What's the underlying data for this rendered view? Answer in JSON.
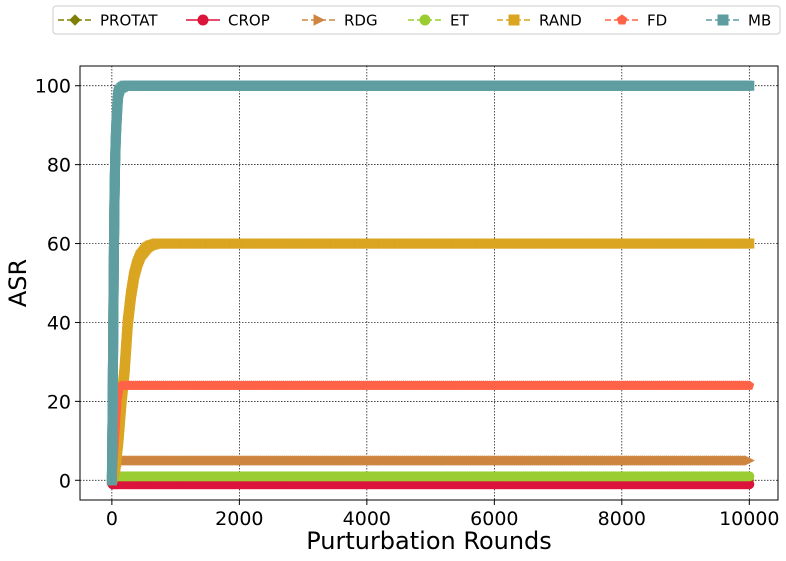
{
  "chart_data": {
    "type": "line",
    "title": "",
    "xlabel": "Purturbation Rounds",
    "ylabel": "ASR",
    "xlim": [
      -500,
      10450
    ],
    "ylim": [
      -5,
      105
    ],
    "xticks": [
      0,
      2000,
      4000,
      6000,
      8000,
      10000
    ],
    "yticks": [
      0,
      20,
      40,
      60,
      80,
      100
    ],
    "xtick_labels": [
      "0",
      "2000",
      "4000",
      "6000",
      "8000",
      "10000"
    ],
    "ytick_labels": [
      "0",
      "20",
      "40",
      "60",
      "80",
      "100"
    ],
    "grid": true,
    "legend_position": "top",
    "series": [
      {
        "name": "PROTAT",
        "color": "#808000",
        "marker": "diamond",
        "dash": "6,3",
        "x": [
          0,
          5,
          10,
          20,
          50,
          100,
          10000
        ],
        "y": [
          0,
          0,
          0,
          0,
          0,
          0,
          0
        ]
      },
      {
        "name": "CROP",
        "color": "#DC143C",
        "marker": "circle",
        "dash": "",
        "x": [
          0,
          10,
          20,
          50,
          100,
          200,
          10000
        ],
        "y": [
          0,
          -1,
          -1,
          -1,
          -1,
          -1,
          -1
        ]
      },
      {
        "name": "RDG",
        "color": "#CD853F",
        "marker": "triangle-right",
        "dash": "6,3",
        "x": [
          0,
          20,
          40,
          60,
          80,
          100,
          150,
          10000
        ],
        "y": [
          0,
          1,
          2,
          3,
          4,
          5,
          5,
          5
        ]
      },
      {
        "name": "ET",
        "color": "#9ACD32",
        "marker": "circle",
        "dash": "6,3",
        "x": [
          0,
          20,
          50,
          100,
          10000
        ],
        "y": [
          0,
          0.5,
          1,
          1,
          1
        ]
      },
      {
        "name": "RAND",
        "color": "#DAA520",
        "marker": "square",
        "dash": "6,3",
        "x": [
          0,
          50,
          100,
          150,
          200,
          250,
          300,
          350,
          400,
          450,
          500,
          550,
          600,
          700,
          10000
        ],
        "y": [
          0,
          3,
          10,
          20,
          28,
          40,
          47,
          52,
          55,
          57,
          58,
          59,
          59.5,
          60,
          60
        ]
      },
      {
        "name": "FD",
        "color": "#FF6347",
        "marker": "pentagon",
        "dash": "6,3",
        "x": [
          0,
          20,
          40,
          60,
          80,
          100,
          120,
          150,
          10000
        ],
        "y": [
          0,
          5,
          10,
          15,
          20,
          22,
          23.5,
          24,
          24
        ]
      },
      {
        "name": "MB",
        "color": "#5F9EA0",
        "marker": "square",
        "dash": "6,3",
        "x": [
          0,
          10,
          20,
          30,
          40,
          50,
          60,
          70,
          80,
          90,
          100,
          120,
          150,
          200,
          10000
        ],
        "y": [
          0,
          15,
          35,
          55,
          70,
          80,
          86,
          90,
          93,
          96,
          98,
          99,
          99.5,
          100,
          100
        ]
      }
    ]
  }
}
